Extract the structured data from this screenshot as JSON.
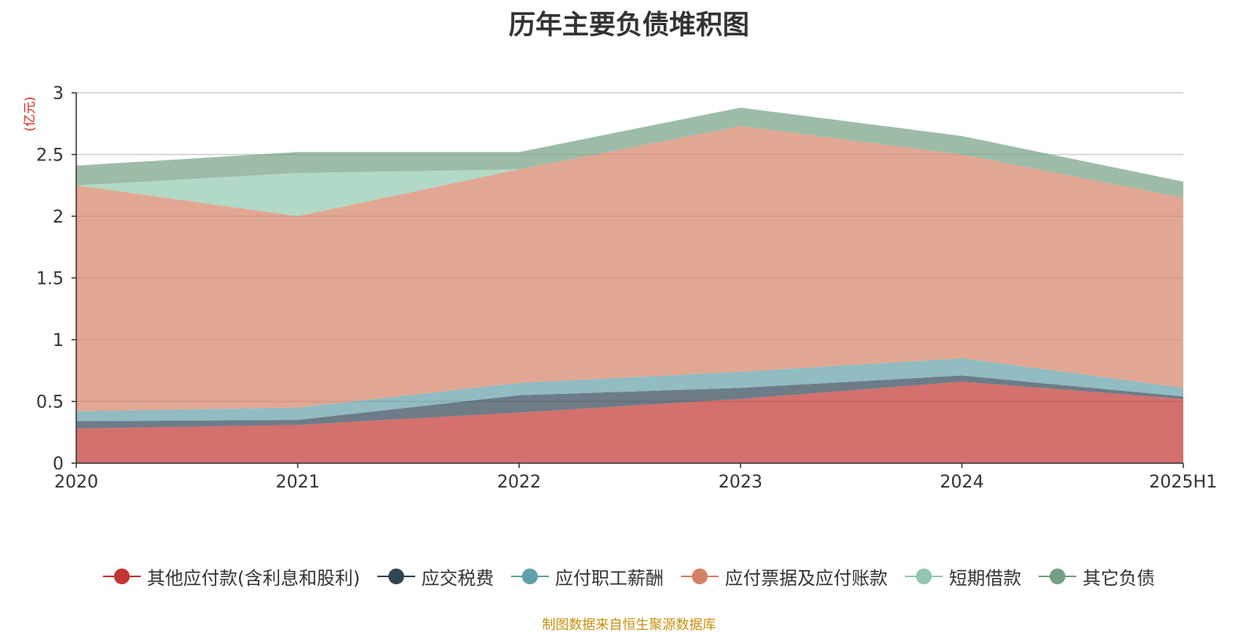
{
  "chart_data": {
    "type": "area",
    "stacked": true,
    "title": "历年主要负债堆积图",
    "ylabel": "(亿元)",
    "xlabel": "",
    "categories": [
      "2020",
      "2021",
      "2022",
      "2023",
      "2024",
      "2025H1"
    ],
    "ylim": [
      0,
      3
    ],
    "yticks": [
      "0",
      "0.5",
      "1",
      "1.5",
      "2",
      "2.5",
      "3"
    ],
    "grid": true,
    "legend_position": "bottom",
    "series": [
      {
        "name": "其他应付款(含利息和股利)",
        "color": "#c23531",
        "values": [
          0.28,
          0.31,
          0.41,
          0.52,
          0.66,
          0.52
        ]
      },
      {
        "name": "应交税费",
        "color": "#2f4554",
        "values": [
          0.06,
          0.04,
          0.14,
          0.09,
          0.05,
          0.02
        ]
      },
      {
        "name": "应付职工薪酬",
        "color": "#61a0a8",
        "values": [
          0.08,
          0.1,
          0.1,
          0.13,
          0.14,
          0.07
        ]
      },
      {
        "name": "应付票据及应付账款",
        "color": "#d48265",
        "values": [
          1.83,
          1.55,
          1.73,
          1.99,
          1.65,
          1.54
        ]
      },
      {
        "name": "短期借款",
        "color": "#91c7ae",
        "values": [
          0.0,
          0.35,
          0.0,
          0.0,
          0.0,
          0.0
        ]
      },
      {
        "name": "其它负债",
        "color": "#749f83",
        "values": [
          0.16,
          0.17,
          0.14,
          0.15,
          0.15,
          0.13
        ]
      }
    ]
  },
  "footer": {
    "source": "制图数据来自恒生聚源数据库"
  }
}
